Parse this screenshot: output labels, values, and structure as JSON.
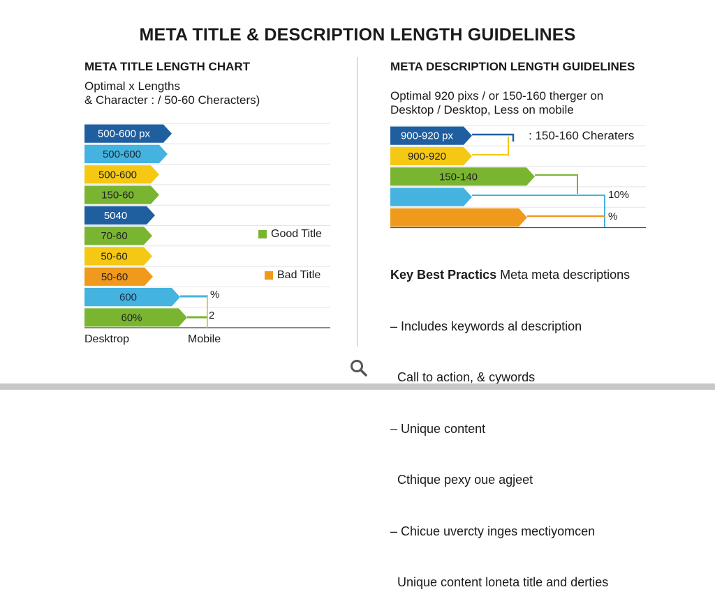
{
  "title": "META TITLE & DESCRIPTION LENGTH GUIDELINES",
  "colors": {
    "dark_blue": "#1f5fa0",
    "light_blue": "#45b3e0",
    "yellow": "#f5c814",
    "green": "#7ab532",
    "orange": "#ef9a1c"
  },
  "left": {
    "heading": "META TITLE LENGTH CHART",
    "subtitle_line1": "Optimal x Lengths",
    "subtitle_line2": "& Character : / 50-60 Cheracters)",
    "bars": [
      {
        "label": "500-600 px",
        "color": "dark_blue"
      },
      {
        "label": "500-600",
        "color": "light_blue"
      },
      {
        "label": "500-600",
        "color": "yellow"
      },
      {
        "label": "150-60",
        "color": "green"
      },
      {
        "label": "5040",
        "color": "dark_blue"
      },
      {
        "label": "70-60",
        "color": "green"
      },
      {
        "label": "50-60",
        "color": "yellow"
      },
      {
        "label": "50-60",
        "color": "orange"
      },
      {
        "label": "600",
        "color": "light_blue"
      },
      {
        "label": "60%",
        "color": "green"
      }
    ],
    "connector_labels": [
      "%",
      "2"
    ],
    "legend": [
      {
        "label": "Good Title",
        "color": "green"
      },
      {
        "label": "Bad Title",
        "color": "orange"
      }
    ],
    "axis_left": "Desktrop",
    "axis_right": "Mobile"
  },
  "right": {
    "heading": "META DESCRIPTION LENGTH GUIDELINES",
    "subtitle_line1": "Optimal 920 pixs  / or 150-160 therger on",
    "subtitle_line2": "Desktop / Desktop, Less on mobile",
    "bars": [
      {
        "label": "900-920 px",
        "color": "dark_blue"
      },
      {
        "label": "900-920",
        "color": "yellow"
      },
      {
        "label": "150-140",
        "color": "green"
      },
      {
        "label": "",
        "color": "light_blue"
      },
      {
        "label": "",
        "color": "orange"
      }
    ],
    "notes": [
      ": 150-160 Cheraters",
      "10%",
      "%"
    ],
    "best_practices": {
      "heading_bold": "Key Best Practics",
      "heading_rest": " Meta meta descriptions",
      "lines": [
        "– Includes keywords al description",
        "  Call to action, & cywords",
        "– Unique content",
        "  Cthique pexy oue agjeet",
        "– Chicue uvercty inges mectiyomcen",
        "  Unique content loneta title and derties"
      ]
    }
  },
  "icons": {
    "bottom": "search-icon"
  }
}
